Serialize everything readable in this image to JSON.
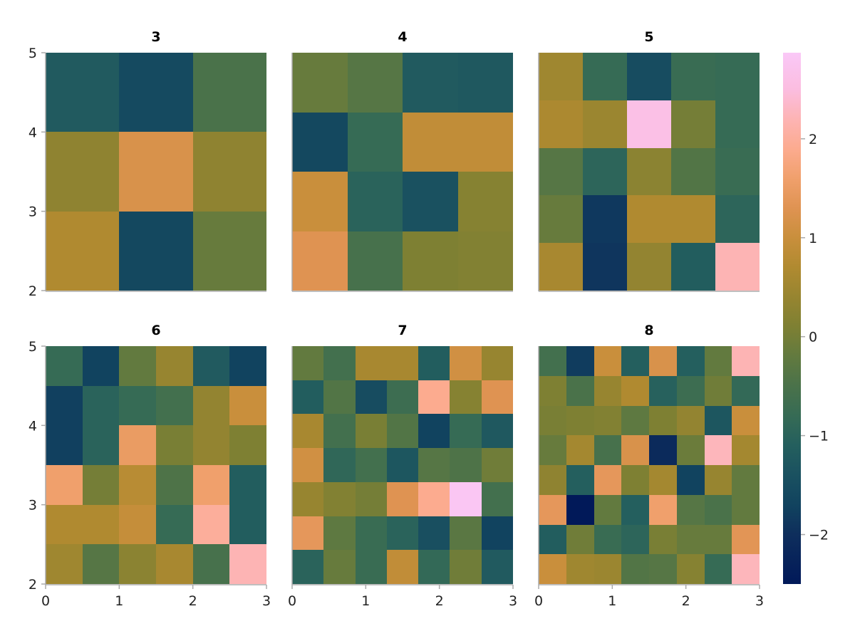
{
  "chart_data": {
    "type": "heatmap",
    "colormap": "batlow",
    "xlim": [
      0,
      3
    ],
    "ylim": [
      2,
      5
    ],
    "x_ticks": [
      "0",
      "1",
      "2",
      "3"
    ],
    "y_ticks": [
      "2",
      "3",
      "4",
      "5"
    ],
    "colorbar": {
      "range": [
        -2.5,
        2.87
      ],
      "ticks": [
        -2,
        -1,
        0,
        1,
        2
      ],
      "tick_labels": [
        "−2",
        "−1",
        "0",
        "1",
        "2"
      ]
    },
    "panels": [
      {
        "title": "3",
        "rows_top_to_bottom": [
          [
            -1.2,
            -1.55,
            -0.5
          ],
          [
            0.3,
            1.2,
            0.3
          ],
          [
            0.7,
            -1.6,
            -0.15
          ]
        ]
      },
      {
        "title": "4",
        "rows_top_to_bottom": [
          [
            -0.15,
            -0.35,
            -1.2,
            -1.25
          ],
          [
            -1.6,
            -0.8,
            0.9,
            0.9
          ],
          [
            1.0,
            -1.0,
            -1.4,
            0.2
          ],
          [
            1.3,
            -0.55,
            0.1,
            0.15
          ]
        ]
      },
      {
        "title": "5",
        "rows_top_to_bottom": [
          [
            0.5,
            -0.8,
            -1.5,
            -0.75,
            -0.8
          ],
          [
            0.65,
            0.45,
            2.6,
            0.0,
            -0.8
          ],
          [
            -0.35,
            -0.95,
            0.25,
            -0.4,
            -0.75
          ],
          [
            -0.15,
            -1.85,
            0.7,
            0.7,
            -0.95
          ],
          [
            0.6,
            -1.9,
            0.35,
            -1.15,
            2.2
          ]
        ]
      },
      {
        "title": "6",
        "rows_top_to_bottom": [
          [
            -0.8,
            -1.7,
            -0.2,
            0.4,
            -1.2,
            -1.7
          ],
          [
            -1.75,
            -1.0,
            -0.8,
            -0.6,
            0.35,
            1.0
          ],
          [
            -1.75,
            -1.0,
            1.5,
            0.05,
            0.35,
            0.1
          ],
          [
            1.6,
            0.0,
            0.8,
            -0.45,
            1.6,
            -1.15
          ],
          [
            0.7,
            0.7,
            0.95,
            -0.8,
            2.0,
            -1.15
          ],
          [
            0.5,
            -0.35,
            0.25,
            0.6,
            -0.55,
            2.2
          ]
        ]
      },
      {
        "title": "7",
        "rows_top_to_bottom": [
          [
            -0.2,
            -0.6,
            0.6,
            0.6,
            -1.15,
            1.1,
            0.4
          ],
          [
            -1.15,
            -0.4,
            -1.5,
            -0.7,
            1.9,
            0.2,
            1.3
          ],
          [
            0.6,
            -0.6,
            0.05,
            -0.4,
            -1.7,
            -0.8,
            -1.25
          ],
          [
            1.1,
            -0.9,
            -0.6,
            -1.3,
            -0.35,
            -0.45,
            -0.05
          ],
          [
            0.4,
            0.15,
            0.0,
            1.3,
            1.9,
            2.8,
            -0.6
          ],
          [
            1.4,
            -0.25,
            -0.75,
            -1.0,
            -1.45,
            -0.3,
            -1.7
          ],
          [
            -1.0,
            -0.15,
            -0.75,
            0.9,
            -0.85,
            -0.05,
            -1.2
          ]
        ]
      },
      {
        "title": "8",
        "rows_top_to_bottom": [
          [
            -0.6,
            -1.8,
            1.0,
            -1.1,
            1.2,
            -1.1,
            -0.2,
            2.2
          ],
          [
            0.1,
            -0.5,
            0.4,
            0.7,
            -1.05,
            -0.7,
            -0.05,
            -0.85
          ],
          [
            0.05,
            0.1,
            0.15,
            -0.25,
            0.1,
            0.35,
            -1.3,
            1.0
          ],
          [
            -0.15,
            0.55,
            -0.55,
            1.2,
            -2.1,
            -0.1,
            2.25,
            0.55
          ],
          [
            0.3,
            -1.1,
            1.4,
            0.1,
            0.55,
            -1.7,
            0.4,
            -0.2
          ],
          [
            1.4,
            -2.5,
            -0.2,
            -1.1,
            1.6,
            -0.35,
            -0.5,
            -0.2
          ],
          [
            -1.15,
            -0.05,
            -0.75,
            -0.95,
            0.05,
            -0.15,
            -0.15,
            1.35
          ],
          [
            1.0,
            0.5,
            0.45,
            -0.4,
            -0.35,
            0.2,
            -0.8,
            2.25
          ]
        ]
      }
    ]
  }
}
